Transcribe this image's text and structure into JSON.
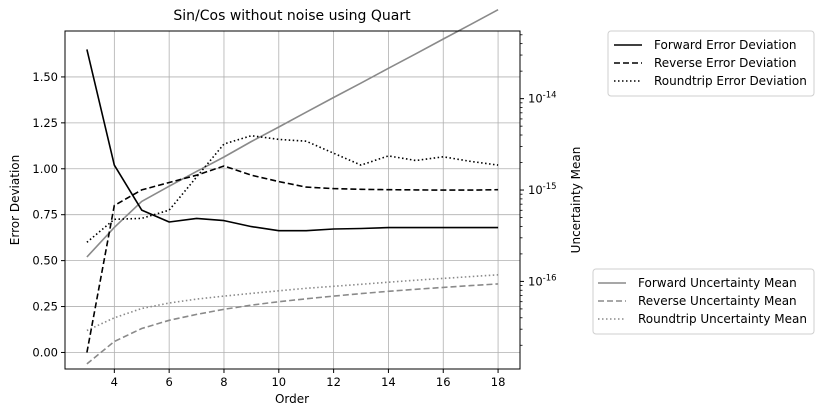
{
  "chart_data": {
    "type": "line",
    "title": "Sin/Cos without noise using Quart",
    "xlabel": "Order",
    "ylabel_left": "Error Deviation",
    "ylabel_right": "Uncertainty Mean",
    "x": [
      3,
      4,
      5,
      6,
      7,
      8,
      9,
      10,
      11,
      12,
      13,
      14,
      15,
      16,
      17,
      18
    ],
    "xlim": [
      2.2,
      18.8
    ],
    "xticks": [
      4,
      6,
      8,
      10,
      12,
      14,
      16,
      18
    ],
    "ylim_left": [
      -0.09,
      1.75
    ],
    "yticks_left": [
      0.0,
      0.25,
      0.5,
      0.75,
      1.0,
      1.25,
      1.5
    ],
    "ytick_labels_left": [
      "0.00",
      "0.25",
      "0.50",
      "0.75",
      "1.00",
      "1.25",
      "1.50"
    ],
    "yscale_right": "log",
    "ylim_right": [
      1.1e-17,
      5.5e-14
    ],
    "yticks_right": [
      1e-16,
      1e-15,
      1e-14
    ],
    "ytick_labels_right": [
      "10",
      "10",
      "10"
    ],
    "ytick_exponents_right": [
      "-16",
      "-15",
      "-14"
    ],
    "grid": true,
    "left_series": [
      {
        "name": "Forward Error Deviation",
        "style": "solid",
        "color": "#000000",
        "values": [
          1.65,
          1.02,
          0.775,
          0.71,
          0.73,
          0.718,
          0.685,
          0.663,
          0.663,
          0.672,
          0.675,
          0.68,
          0.68,
          0.68,
          0.68,
          0.68
        ]
      },
      {
        "name": "Reverse Error Deviation",
        "style": "dashed",
        "color": "#000000",
        "values": [
          0.0,
          0.8,
          0.885,
          0.925,
          0.965,
          1.015,
          0.965,
          0.93,
          0.9,
          0.892,
          0.888,
          0.886,
          0.885,
          0.884,
          0.884,
          0.886
        ]
      },
      {
        "name": "Roundtrip Error Deviation",
        "style": "dotted",
        "color": "#000000",
        "values": [
          0.6,
          0.725,
          0.73,
          0.775,
          0.955,
          1.135,
          1.18,
          1.16,
          1.15,
          1.085,
          1.02,
          1.07,
          1.045,
          1.065,
          1.04,
          1.02
        ]
      }
    ],
    "right_series": [
      {
        "name": "Forward Uncertainty Mean",
        "style": "solid",
        "color": "#8a8a8a",
        "values": [
          1.85e-16,
          3.9e-16,
          7.5e-16,
          1.1e-15,
          1.6e-15,
          2.3e-15,
          3.4e-15,
          4.9e-15,
          7.1e-15,
          1.03e-14,
          1.48e-14,
          2.15e-14,
          3.1e-14,
          4.5e-14,
          6.5e-14,
          9.4e-14
        ]
      },
      {
        "name": "Reverse Uncertainty Mean",
        "style": "dashed",
        "color": "#8a8a8a",
        "values": [
          1.25e-17,
          2.2e-17,
          3.05e-17,
          3.75e-17,
          4.35e-17,
          4.95e-17,
          5.5e-17,
          6e-17,
          6.45e-17,
          6.9e-17,
          7.35e-17,
          7.8e-17,
          8.2e-17,
          8.6e-17,
          9e-17,
          9.4e-17
        ]
      },
      {
        "name": "Roundtrip Uncertainty Mean",
        "style": "dotted",
        "color": "#8a8a8a",
        "values": [
          2.9e-17,
          4e-17,
          5.05e-17,
          5.8e-17,
          6.4e-17,
          6.9e-17,
          7.4e-17,
          7.9e-17,
          8.4e-17,
          8.85e-17,
          9.3e-17,
          9.8e-17,
          1.03e-16,
          1.08e-16,
          1.13e-16,
          1.18e-16
        ]
      }
    ],
    "legend_left_placement": "outside top-right",
    "legend_right_placement": "outside bottom-right"
  }
}
